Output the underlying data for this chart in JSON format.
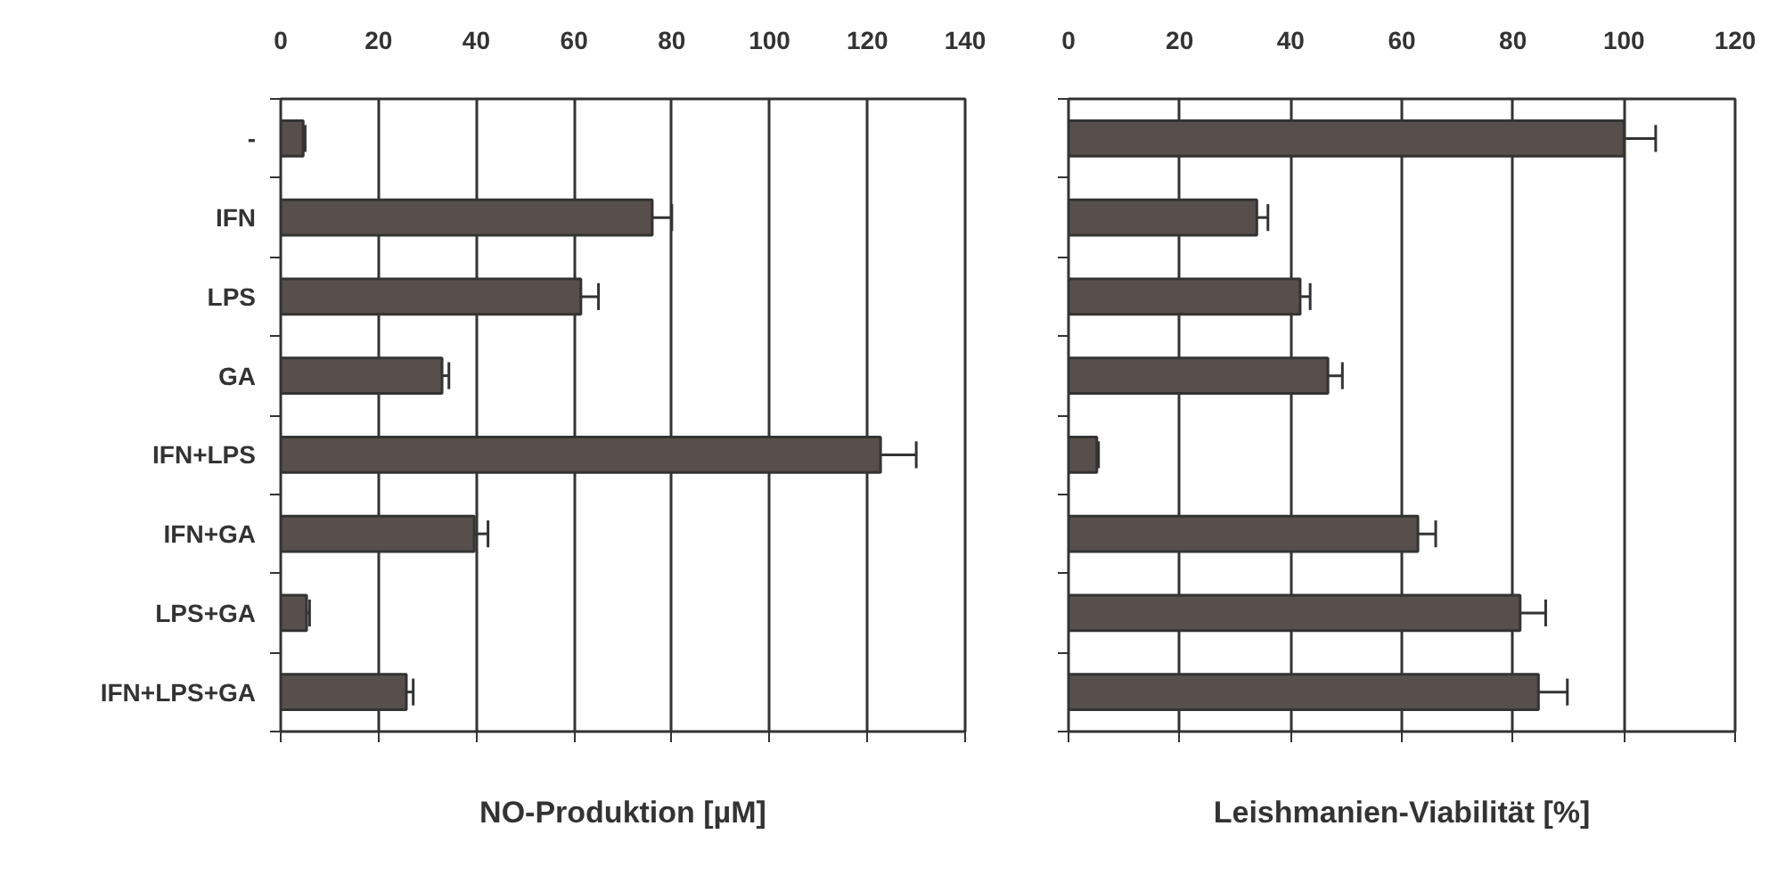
{
  "chart_data": [
    {
      "type": "bar",
      "orientation": "horizontal",
      "xlabel": "NO-Produktion [µM]",
      "categories": [
        "-",
        "IFN",
        "LPS",
        "GA",
        "IFN+LPS",
        "IFN+GA",
        "LPS+GA",
        "IFN+LPS+GA"
      ],
      "values": [
        4.6,
        76,
        61.4,
        33,
        122.7,
        39.6,
        5.3,
        25.7
      ],
      "errors": [
        0.4,
        4,
        3.6,
        1.4,
        7.3,
        2.8,
        0.6,
        1.4
      ],
      "color": "#574f4b",
      "xlim": [
        0,
        140
      ],
      "xticks": [
        0,
        20,
        40,
        60,
        80,
        100,
        120,
        140
      ],
      "grid": "x"
    },
    {
      "type": "bar",
      "orientation": "horizontal",
      "xlabel": "Leishmanien-Viabilität [%]",
      "categories": [
        null,
        null,
        null,
        null,
        null,
        null,
        null,
        null
      ],
      "values": [
        100,
        33.9,
        41.7,
        46.7,
        5.1,
        62.9,
        81.3,
        84.6
      ],
      "errors": [
        5.7,
        2,
        1.8,
        2.6,
        0.3,
        3.2,
        4.6,
        5.2
      ],
      "color": "#574f4b",
      "xlim": [
        0,
        120
      ],
      "xticks": [
        0,
        20,
        40,
        60,
        80,
        100,
        120
      ],
      "grid": "x",
      "tick_labels": "x"
    }
  ]
}
